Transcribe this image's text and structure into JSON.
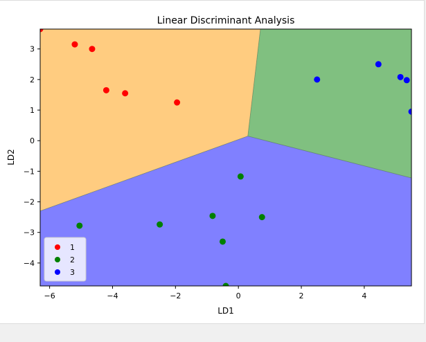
{
  "chart_data": {
    "type": "scatter",
    "title": "Linear Discriminant Analysis",
    "xlabel": "LD1",
    "ylabel": "LD2",
    "xlim": [
      -6.3,
      5.5
    ],
    "ylim": [
      -4.75,
      3.65
    ],
    "xticks": [
      -6,
      -4,
      -2,
      0,
      2,
      4
    ],
    "yticks": [
      -4,
      -3,
      -2,
      -1,
      0,
      1,
      2,
      3
    ],
    "grid": false,
    "legend_position": "lower-left",
    "regions": [
      {
        "class": "1",
        "color": "#ffcc80"
      },
      {
        "class": "2",
        "color": "#80c080"
      },
      {
        "class": "3",
        "color": "#8080ff"
      }
    ],
    "boundary": {
      "junction": [
        0.3,
        0.15
      ],
      "to_top": [
        0.7,
        3.65
      ],
      "to_left": [
        -6.3,
        -2.3
      ],
      "to_right": [
        5.5,
        -1.22
      ]
    },
    "series": [
      {
        "name": "1",
        "color": "#ff0000",
        "points": [
          [
            -6.3,
            3.65
          ],
          [
            -5.2,
            3.15
          ],
          [
            -4.65,
            3.0
          ],
          [
            -4.2,
            1.65
          ],
          [
            -3.6,
            1.55
          ],
          [
            -1.95,
            1.25
          ]
        ]
      },
      {
        "name": "2",
        "color": "#008000",
        "points": [
          [
            -5.05,
            -2.78
          ],
          [
            -2.5,
            -2.74
          ],
          [
            -0.82,
            -2.46
          ],
          [
            0.07,
            -1.17
          ],
          [
            0.75,
            -2.5
          ],
          [
            -0.5,
            -3.3
          ],
          [
            -0.4,
            -4.75
          ]
        ]
      },
      {
        "name": "3",
        "color": "#0000ff",
        "points": [
          [
            2.5,
            2.0
          ],
          [
            4.45,
            2.5
          ],
          [
            5.15,
            2.08
          ],
          [
            5.35,
            1.98
          ],
          [
            5.5,
            0.95
          ]
        ]
      }
    ]
  }
}
